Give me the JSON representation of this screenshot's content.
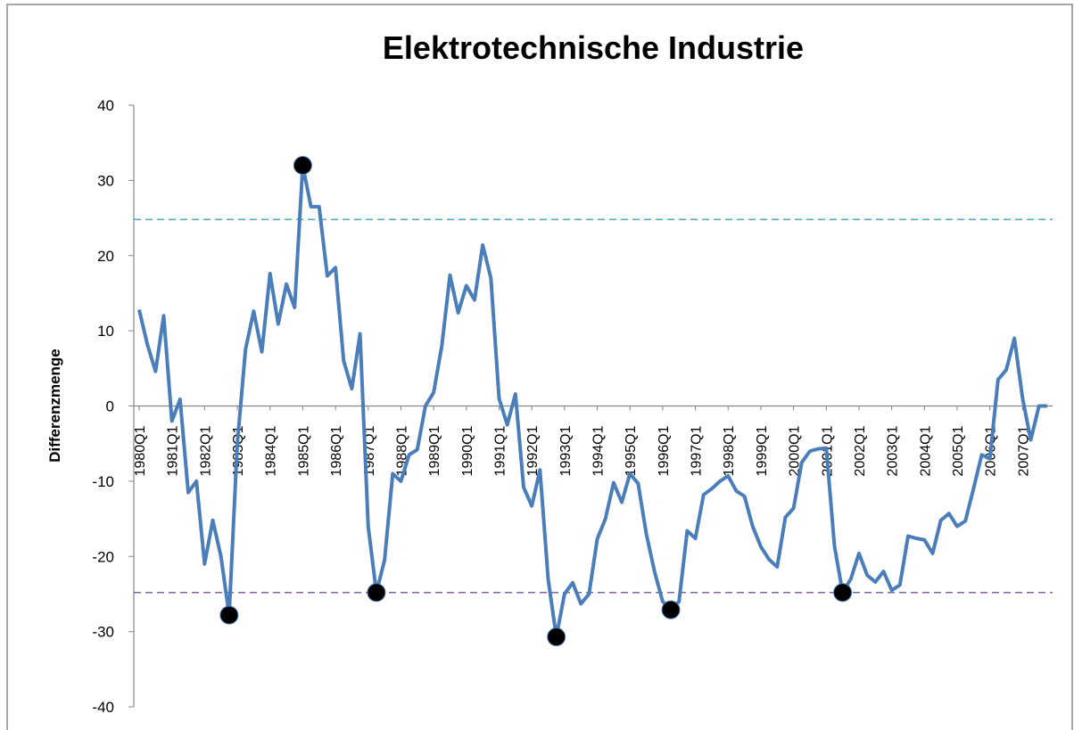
{
  "chart_data": {
    "type": "line",
    "title": "Elektrotechnische Industrie",
    "y_label": "Differenzmenge",
    "categories": [
      "1980Q1",
      null,
      null,
      null,
      "1981Q1",
      null,
      null,
      null,
      "1982Q1",
      null,
      null,
      null,
      "1983Q1",
      null,
      null,
      null,
      "1984Q1",
      null,
      null,
      null,
      "1985Q1",
      null,
      null,
      null,
      "1986Q1",
      null,
      null,
      null,
      "1987Q1",
      null,
      null,
      null,
      "1988Q1",
      null,
      null,
      null,
      "1989Q1",
      null,
      null,
      null,
      "1990Q1",
      null,
      null,
      null,
      "1991Q1",
      null,
      null,
      null,
      "1992Q1",
      null,
      null,
      null,
      "1993Q1",
      null,
      null,
      null,
      "1994Q1",
      null,
      null,
      null,
      "1995Q1",
      null,
      null,
      null,
      "1996Q1",
      null,
      null,
      null,
      "1997Q1",
      null,
      null,
      null,
      "1998Q1",
      null,
      null,
      null,
      "1999Q1",
      null,
      null,
      null,
      "2000Q1",
      null,
      null,
      null,
      "2001Q1",
      null,
      null,
      null,
      "2002Q1",
      null,
      null,
      null,
      "2003Q1",
      null,
      null,
      null,
      "2004Q1",
      null,
      null,
      null,
      "2005Q1",
      null,
      null,
      null,
      "2006Q1",
      null,
      null,
      null,
      "2007Q1",
      null,
      null,
      null
    ],
    "series": [
      {
        "color": "#4a7ebb",
        "values": [
          12.8,
          8.2,
          4.6,
          12,
          -2,
          0.9,
          -11.5,
          -10,
          -21,
          -15.2,
          -20,
          -27.8,
          -5,
          7.5,
          12.6,
          7.2,
          17.6,
          10.9,
          16.2,
          13.1,
          32,
          26.5,
          26.5,
          17.3,
          18.4,
          6,
          2.3,
          9.6,
          -16,
          -24.8,
          -20.5,
          -9,
          -10,
          -6.5,
          -5.8,
          0,
          1.8,
          8,
          17.4,
          12.4,
          16,
          14.1,
          21.4,
          17,
          1,
          -2.5,
          1.6,
          -10.8,
          -13.3,
          -8.5,
          -23,
          -30.7,
          -25,
          -23.5,
          -26.3,
          -25,
          -17.7,
          -15,
          -10.2,
          -12.8,
          -9,
          -10.3,
          -17,
          -22,
          -26,
          -27.1,
          -26,
          -16.6,
          -17.6,
          -11.8,
          -11,
          -10,
          -9.3,
          -11.3,
          -12,
          -16,
          -18.7,
          -20.4,
          -21.4,
          -14.8,
          -13.6,
          -7.5,
          -6,
          -5.7,
          -5.6,
          -18.6,
          -24.8,
          -23,
          -19.6,
          -22.5,
          -23.4,
          -22,
          -24.5,
          -23.8,
          -17.3,
          -17.6,
          -17.8,
          -19.6,
          -15.2,
          -14.3,
          -16,
          -15.3,
          -11,
          -6.5,
          -7,
          3.5,
          4.8,
          9,
          1,
          -4.5,
          0,
          0
        ]
      },
      {
        "color": "#000000",
        "style": "marker",
        "values": [
          null,
          null,
          null,
          null,
          null,
          null,
          null,
          null,
          null,
          null,
          null,
          -27.8,
          null,
          null,
          null,
          null,
          null,
          null,
          null,
          null,
          32,
          null,
          null,
          null,
          null,
          null,
          null,
          null,
          null,
          -24.8,
          null,
          null,
          null,
          null,
          null,
          null,
          null,
          null,
          null,
          null,
          null,
          null,
          null,
          null,
          null,
          null,
          null,
          null,
          null,
          null,
          null,
          -30.7,
          null,
          null,
          null,
          null,
          null,
          null,
          null,
          null,
          null,
          null,
          null,
          null,
          null,
          -27.1,
          null,
          null,
          null,
          null,
          null,
          null,
          null,
          null,
          null,
          null,
          null,
          null,
          null,
          null,
          null,
          null,
          null,
          null,
          null,
          null,
          -24.8,
          null,
          null,
          null,
          null,
          null,
          null,
          null,
          null,
          null,
          null,
          null,
          null,
          null,
          null,
          null,
          null,
          null,
          null,
          null,
          null,
          null,
          null,
          null,
          null,
          null
        ]
      }
    ],
    "hlines": [
      {
        "value": 24.8,
        "color": "#4bacc6"
      },
      {
        "value": -24.8,
        "color": "#8064a2"
      }
    ],
    "ylim": [
      -40,
      40
    ],
    "yticks": [
      -40,
      -30,
      -20,
      -10,
      0,
      10,
      20,
      30,
      40
    ]
  }
}
